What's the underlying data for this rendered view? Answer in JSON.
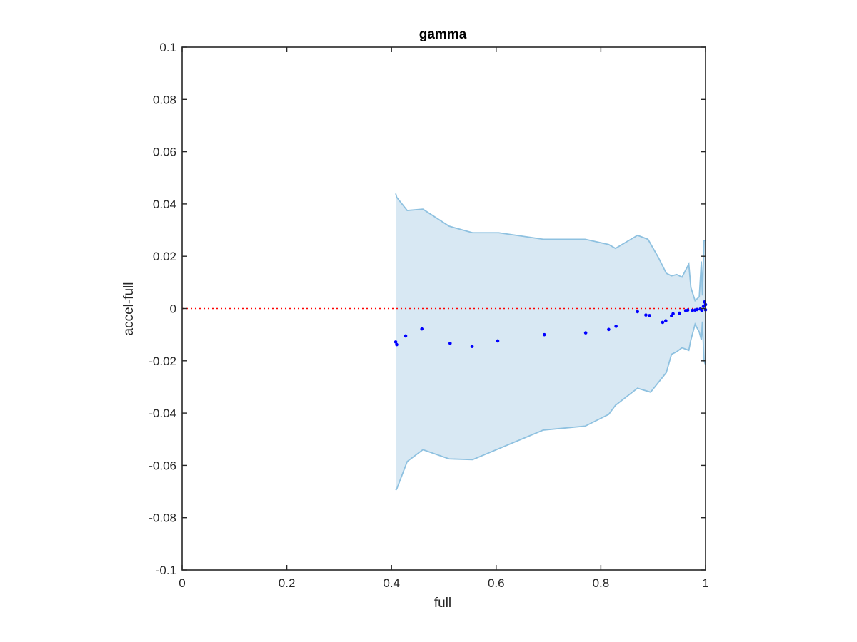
{
  "chart_data": {
    "type": "scatter",
    "title": "gamma",
    "xlabel": "full",
    "ylabel": "accel-full",
    "xlim": [
      0,
      1
    ],
    "ylim": [
      -0.1,
      0.1
    ],
    "xticks": [
      0,
      0.2,
      0.4,
      0.6,
      0.8,
      1
    ],
    "xtick_labels": [
      "0",
      "0.2",
      "0.4",
      "0.6",
      "0.8",
      "1"
    ],
    "yticks": [
      0.1,
      0.08,
      0.06,
      0.04,
      0.02,
      0,
      -0.02,
      -0.04,
      -0.06,
      -0.08,
      -0.1
    ],
    "ytick_labels": [
      "0.1",
      "0.08",
      "0.06",
      "0.04",
      "0.02",
      "0",
      "-0.02",
      "-0.04",
      "-0.06",
      "-0.08",
      "-0.1"
    ],
    "grid": false,
    "reference_line": {
      "y": 0,
      "style": "dotted",
      "color": "#ff0000"
    },
    "band": {
      "color": "#8ec1e0",
      "fill": "#d8e8f3",
      "upper": [
        [
          0.408,
          0.044
        ],
        [
          0.41,
          0.0425
        ],
        [
          0.43,
          0.0375
        ],
        [
          0.46,
          0.038
        ],
        [
          0.51,
          0.0315
        ],
        [
          0.555,
          0.029
        ],
        [
          0.605,
          0.029
        ],
        [
          0.69,
          0.0265
        ],
        [
          0.77,
          0.0265
        ],
        [
          0.815,
          0.0245
        ],
        [
          0.828,
          0.023
        ],
        [
          0.87,
          0.028
        ],
        [
          0.89,
          0.0265
        ],
        [
          0.91,
          0.0195
        ],
        [
          0.925,
          0.0135
        ],
        [
          0.935,
          0.0125
        ],
        [
          0.945,
          0.013
        ],
        [
          0.955,
          0.012
        ],
        [
          0.968,
          0.017
        ],
        [
          0.972,
          0.008
        ],
        [
          0.98,
          0.003
        ],
        [
          0.988,
          0.0045
        ],
        [
          0.992,
          0.018
        ],
        [
          0.994,
          0.005
        ],
        [
          0.997,
          0.026
        ],
        [
          1.0,
          0.026
        ]
      ],
      "lower": [
        [
          1.0,
          -0.0215
        ],
        [
          0.997,
          -0.02
        ],
        [
          0.994,
          -0.005
        ],
        [
          0.992,
          -0.012
        ],
        [
          0.988,
          -0.009
        ],
        [
          0.98,
          -0.006
        ],
        [
          0.972,
          -0.012
        ],
        [
          0.968,
          -0.016
        ],
        [
          0.955,
          -0.015
        ],
        [
          0.945,
          -0.0165
        ],
        [
          0.935,
          -0.0175
        ],
        [
          0.925,
          -0.0245
        ],
        [
          0.895,
          -0.032
        ],
        [
          0.87,
          -0.0305
        ],
        [
          0.828,
          -0.037
        ],
        [
          0.815,
          -0.0405
        ],
        [
          0.77,
          -0.045
        ],
        [
          0.69,
          -0.0465
        ],
        [
          0.555,
          -0.0578
        ],
        [
          0.51,
          -0.0575
        ],
        [
          0.46,
          -0.054
        ],
        [
          0.43,
          -0.0585
        ],
        [
          0.41,
          -0.069
        ],
        [
          0.408,
          -0.0695
        ]
      ]
    },
    "series": [
      {
        "color": "#0000ff",
        "x": [
          0.408,
          0.41,
          0.427,
          0.458,
          0.512,
          0.554,
          0.603,
          0.692,
          0.771,
          0.815,
          0.829,
          0.87,
          0.886,
          0.893,
          0.918,
          0.924,
          0.935,
          0.938,
          0.95,
          0.962,
          0.966,
          0.975,
          0.98,
          0.984,
          0.99,
          0.993,
          0.996,
          0.998,
          1.0,
          1.0
        ],
        "y": [
          -0.0128,
          -0.0138,
          -0.0105,
          -0.0078,
          -0.0133,
          -0.0145,
          -0.0124,
          -0.01,
          -0.0093,
          -0.008,
          -0.0068,
          -0.0012,
          -0.0025,
          -0.0027,
          -0.0053,
          -0.0047,
          -0.0028,
          -0.002,
          -0.0018,
          -0.0008,
          -0.0006,
          -0.0007,
          -0.0006,
          -0.0004,
          -0.0002,
          -0.0008,
          0.0008,
          0.0025,
          0.0015,
          -0.0005
        ]
      }
    ]
  }
}
